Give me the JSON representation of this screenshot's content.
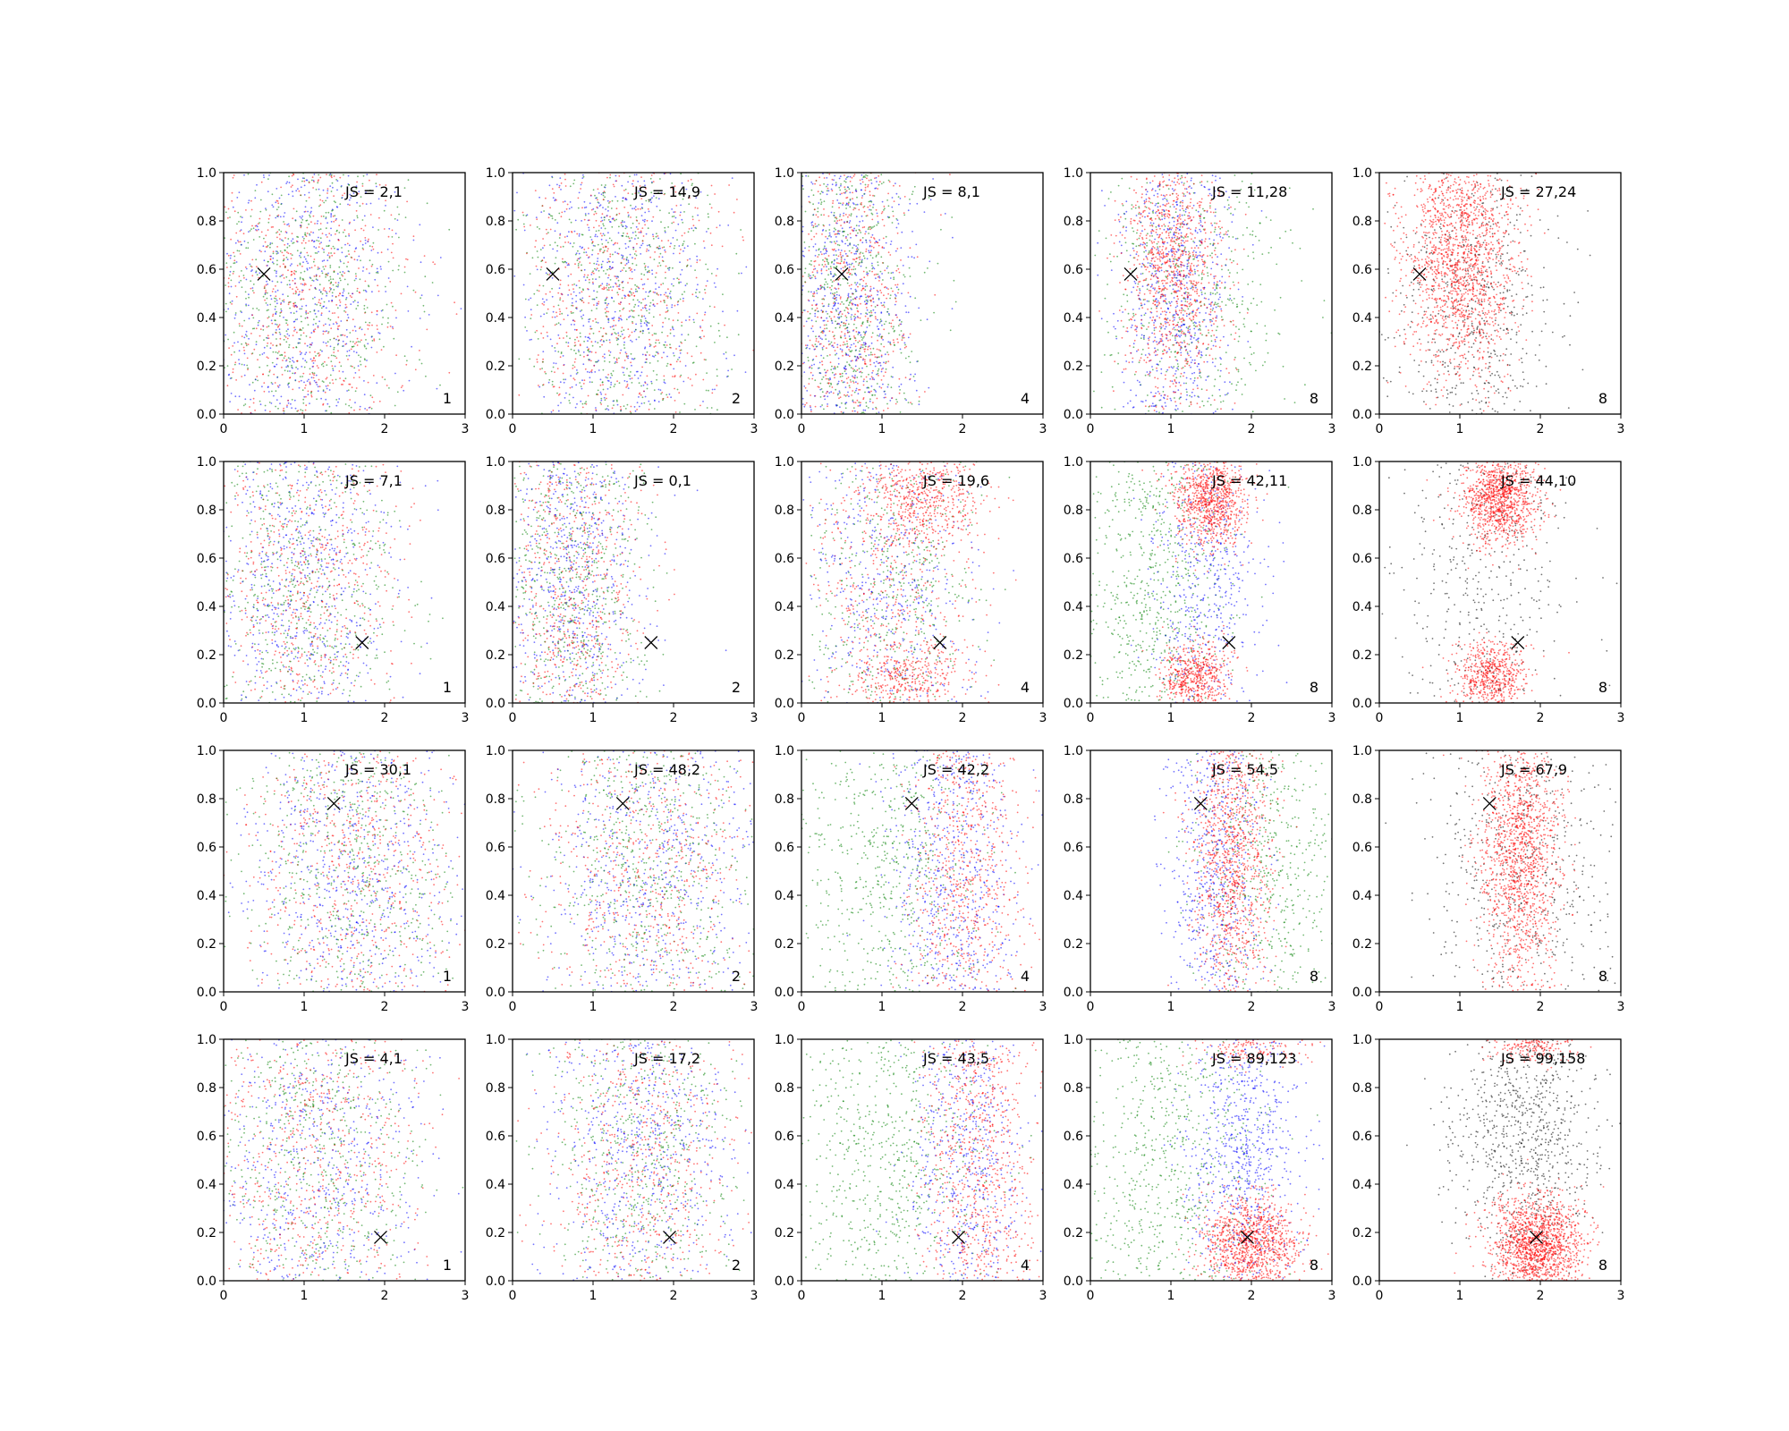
{
  "chart_data": {
    "type": "scatter",
    "layout": {
      "rows": 4,
      "cols": 5
    },
    "xlim": [
      0,
      3
    ],
    "ylim": [
      0,
      1
    ],
    "xticks": [
      "0",
      "1",
      "2",
      "3"
    ],
    "yticks": [
      "0.0",
      "0.2",
      "0.4",
      "0.6",
      "0.8",
      "1.0"
    ],
    "grid": false,
    "colors": {
      "red": "#ff0000",
      "green": "#008000",
      "blue": "#0000ff",
      "black": "#000000"
    },
    "panels": [
      {
        "row": 0,
        "col": 0,
        "js_label": "JS = 2,1",
        "corner_label": "1",
        "marker": {
          "x": 0.5,
          "y": 0.58
        },
        "dists": [
          {
            "c": "mix",
            "x": 1.0,
            "sx": 0.65,
            "y": 0.5,
            "sy": 0.45,
            "n": 2400
          }
        ]
      },
      {
        "row": 0,
        "col": 1,
        "js_label": "JS = 14,9",
        "corner_label": "2",
        "marker": {
          "x": 0.5,
          "y": 0.58
        },
        "dists": [
          {
            "c": "mix",
            "x": 1.3,
            "sx": 0.65,
            "y": 0.5,
            "sy": 0.45,
            "n": 2400
          }
        ]
      },
      {
        "row": 0,
        "col": 2,
        "js_label": "JS = 8,1",
        "corner_label": "4",
        "marker": {
          "x": 0.5,
          "y": 0.58
        },
        "dists": [
          {
            "c": "mix",
            "x": 0.6,
            "sx": 0.4,
            "y": 0.5,
            "sy": 0.45,
            "n": 2400
          }
        ]
      },
      {
        "row": 0,
        "col": 3,
        "js_label": "JS = 11,28",
        "corner_label": "8",
        "marker": {
          "x": 0.5,
          "y": 0.58
        },
        "dists": [
          {
            "c": "green",
            "x": 1.3,
            "sx": 0.6,
            "y": 0.5,
            "sy": 0.45,
            "n": 700
          },
          {
            "c": "blue",
            "x": 1.05,
            "sx": 0.35,
            "y": 0.5,
            "sy": 0.45,
            "n": 900
          },
          {
            "c": "red",
            "x": 1.05,
            "sx": 0.3,
            "y": 0.62,
            "sy": 0.3,
            "n": 1100
          }
        ]
      },
      {
        "row": 0,
        "col": 4,
        "js_label": "JS = 27,24",
        "corner_label": "8",
        "marker": {
          "x": 0.5,
          "y": 0.58
        },
        "dists": [
          {
            "c": "black",
            "x": 1.2,
            "sx": 0.5,
            "y": 0.4,
            "sy": 0.4,
            "n": 700
          },
          {
            "c": "red",
            "x": 1.0,
            "sx": 0.35,
            "y": 0.65,
            "sy": 0.25,
            "n": 1700
          }
        ]
      },
      {
        "row": 1,
        "col": 0,
        "js_label": "JS = 7,1",
        "corner_label": "1",
        "marker": {
          "x": 1.72,
          "y": 0.25
        },
        "dists": [
          {
            "c": "mix",
            "x": 1.0,
            "sx": 0.6,
            "y": 0.5,
            "sy": 0.45,
            "n": 2400
          }
        ]
      },
      {
        "row": 1,
        "col": 1,
        "js_label": "JS = 0,1",
        "corner_label": "2",
        "marker": {
          "x": 1.72,
          "y": 0.25
        },
        "dists": [
          {
            "c": "mix",
            "x": 0.75,
            "sx": 0.45,
            "y": 0.5,
            "sy": 0.45,
            "n": 2400
          }
        ]
      },
      {
        "row": 1,
        "col": 2,
        "js_label": "JS = 19,6",
        "corner_label": "4",
        "marker": {
          "x": 1.72,
          "y": 0.25
        },
        "dists": [
          {
            "c": "mix",
            "x": 1.1,
            "sx": 0.55,
            "y": 0.45,
            "sy": 0.4,
            "n": 1700
          },
          {
            "c": "red",
            "x": 1.55,
            "sx": 0.35,
            "y": 0.85,
            "sy": 0.1,
            "n": 500
          },
          {
            "c": "red",
            "x": 1.3,
            "sx": 0.35,
            "y": 0.1,
            "sy": 0.08,
            "n": 350
          }
        ]
      },
      {
        "row": 1,
        "col": 3,
        "js_label": "JS = 42,11",
        "corner_label": "8",
        "marker": {
          "x": 1.72,
          "y": 0.25
        },
        "dists": [
          {
            "c": "green",
            "x": 0.8,
            "sx": 0.45,
            "y": 0.5,
            "sy": 0.45,
            "n": 900
          },
          {
            "c": "blue",
            "x": 1.45,
            "sx": 0.35,
            "y": 0.5,
            "sy": 0.4,
            "n": 600
          },
          {
            "c": "red",
            "x": 1.5,
            "sx": 0.22,
            "y": 0.85,
            "sy": 0.1,
            "n": 900
          },
          {
            "c": "red",
            "x": 1.3,
            "sx": 0.22,
            "y": 0.11,
            "sy": 0.07,
            "n": 550
          }
        ]
      },
      {
        "row": 1,
        "col": 4,
        "js_label": "JS = 44,10",
        "corner_label": "8",
        "marker": {
          "x": 1.72,
          "y": 0.25
        },
        "dists": [
          {
            "c": "black",
            "x": 1.3,
            "sx": 0.55,
            "y": 0.5,
            "sy": 0.45,
            "n": 550
          },
          {
            "c": "red",
            "x": 1.5,
            "sx": 0.22,
            "y": 0.85,
            "sy": 0.1,
            "n": 1100
          },
          {
            "c": "red",
            "x": 1.4,
            "sx": 0.22,
            "y": 0.1,
            "sy": 0.07,
            "n": 600
          }
        ]
      },
      {
        "row": 2,
        "col": 0,
        "js_label": "JS = 30,1",
        "corner_label": "1",
        "marker": {
          "x": 1.37,
          "y": 0.78
        },
        "dists": [
          {
            "c": "mix",
            "x": 1.6,
            "sx": 0.7,
            "y": 0.5,
            "sy": 0.45,
            "n": 2400
          }
        ]
      },
      {
        "row": 2,
        "col": 1,
        "js_label": "JS = 48,2",
        "corner_label": "2",
        "marker": {
          "x": 1.37,
          "y": 0.78
        },
        "dists": [
          {
            "c": "mix",
            "x": 1.7,
            "sx": 0.7,
            "y": 0.5,
            "sy": 0.45,
            "n": 2400
          }
        ]
      },
      {
        "row": 2,
        "col": 2,
        "js_label": "JS = 42,2",
        "corner_label": "4",
        "marker": {
          "x": 1.37,
          "y": 0.78
        },
        "dists": [
          {
            "c": "green",
            "x": 1.1,
            "sx": 0.55,
            "y": 0.5,
            "sy": 0.45,
            "n": 800
          },
          {
            "c": "blue",
            "x": 1.9,
            "sx": 0.4,
            "y": 0.5,
            "sy": 0.45,
            "n": 800
          },
          {
            "c": "red",
            "x": 2.05,
            "sx": 0.35,
            "y": 0.5,
            "sy": 0.45,
            "n": 900
          }
        ]
      },
      {
        "row": 2,
        "col": 3,
        "js_label": "JS = 54,5",
        "corner_label": "8",
        "marker": {
          "x": 1.37,
          "y": 0.78
        },
        "dists": [
          {
            "c": "green",
            "x": 2.2,
            "sx": 0.5,
            "y": 0.5,
            "sy": 0.45,
            "n": 700
          },
          {
            "c": "blue",
            "x": 1.55,
            "sx": 0.3,
            "y": 0.5,
            "sy": 0.45,
            "n": 800
          },
          {
            "c": "red",
            "x": 1.75,
            "sx": 0.25,
            "y": 0.55,
            "sy": 0.35,
            "n": 1200
          }
        ]
      },
      {
        "row": 2,
        "col": 4,
        "js_label": "JS = 67,9",
        "corner_label": "8",
        "marker": {
          "x": 1.37,
          "y": 0.78
        },
        "dists": [
          {
            "c": "black",
            "x": 1.8,
            "sx": 0.6,
            "y": 0.5,
            "sy": 0.45,
            "n": 700
          },
          {
            "c": "red",
            "x": 1.75,
            "sx": 0.25,
            "y": 0.55,
            "sy": 0.3,
            "n": 1500
          }
        ]
      },
      {
        "row": 3,
        "col": 0,
        "js_label": "JS = 4,1",
        "corner_label": "1",
        "marker": {
          "x": 1.95,
          "y": 0.18
        },
        "dists": [
          {
            "c": "mix",
            "x": 1.1,
            "sx": 0.7,
            "y": 0.5,
            "sy": 0.45,
            "n": 2400
          }
        ]
      },
      {
        "row": 3,
        "col": 1,
        "js_label": "JS = 17,2",
        "corner_label": "2",
        "marker": {
          "x": 1.95,
          "y": 0.18
        },
        "dists": [
          {
            "c": "mix",
            "x": 1.6,
            "sx": 0.6,
            "y": 0.5,
            "sy": 0.45,
            "n": 2400
          }
        ]
      },
      {
        "row": 3,
        "col": 2,
        "js_label": "JS = 43,5",
        "corner_label": "4",
        "marker": {
          "x": 1.95,
          "y": 0.18
        },
        "dists": [
          {
            "c": "green",
            "x": 1.0,
            "sx": 0.65,
            "y": 0.5,
            "sy": 0.45,
            "n": 900
          },
          {
            "c": "blue",
            "x": 2.05,
            "sx": 0.35,
            "y": 0.5,
            "sy": 0.45,
            "n": 700
          },
          {
            "c": "red",
            "x": 2.2,
            "sx": 0.35,
            "y": 0.5,
            "sy": 0.45,
            "n": 1000
          }
        ]
      },
      {
        "row": 3,
        "col": 3,
        "js_label": "JS = 89,123",
        "corner_label": "8",
        "marker": {
          "x": 1.95,
          "y": 0.18
        },
        "dists": [
          {
            "c": "green",
            "x": 1.0,
            "sx": 0.6,
            "y": 0.5,
            "sy": 0.45,
            "n": 900
          },
          {
            "c": "blue",
            "x": 1.9,
            "sx": 0.35,
            "y": 0.55,
            "sy": 0.35,
            "n": 800
          },
          {
            "c": "red",
            "x": 2.0,
            "sx": 0.3,
            "y": 0.15,
            "sy": 0.1,
            "n": 1100
          },
          {
            "c": "red",
            "x": 2.0,
            "sx": 0.3,
            "y": 0.97,
            "sy": 0.04,
            "n": 150
          }
        ]
      },
      {
        "row": 3,
        "col": 4,
        "js_label": "JS = 99,158",
        "corner_label": "8",
        "marker": {
          "x": 1.95,
          "y": 0.18
        },
        "dists": [
          {
            "c": "black",
            "x": 1.8,
            "sx": 0.45,
            "y": 0.6,
            "sy": 0.3,
            "n": 900
          },
          {
            "c": "red",
            "x": 1.95,
            "sx": 0.28,
            "y": 0.15,
            "sy": 0.1,
            "n": 1500
          },
          {
            "c": "red",
            "x": 1.9,
            "sx": 0.25,
            "y": 0.97,
            "sy": 0.04,
            "n": 200
          }
        ]
      }
    ]
  }
}
